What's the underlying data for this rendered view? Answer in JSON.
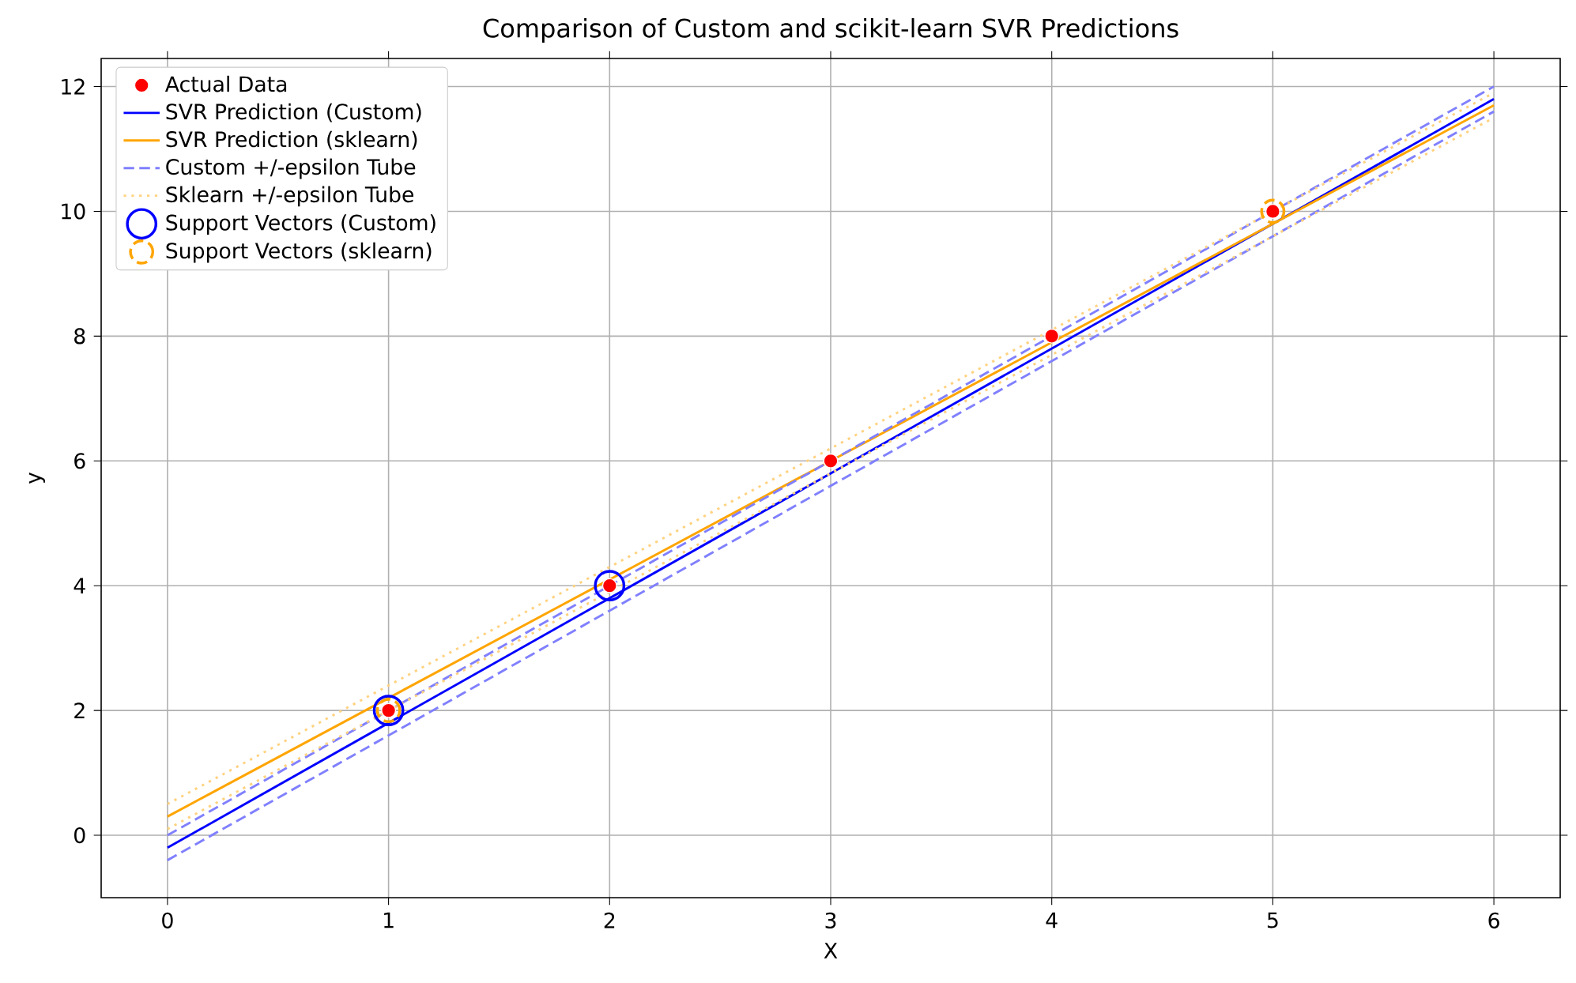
{
  "chart_data": {
    "type": "line",
    "title": "Comparison of Custom and scikit-learn SVR Predictions",
    "xlabel": "X",
    "ylabel": "y",
    "xlim": [
      -0.3,
      6.3
    ],
    "ylim": [
      -1,
      12.45
    ],
    "xticks": [
      0,
      1,
      2,
      3,
      4,
      5,
      6
    ],
    "yticks": [
      0,
      2,
      4,
      6,
      8,
      10,
      12
    ],
    "grid": true,
    "legend": "top left",
    "series": [
      {
        "name": "Actual Data",
        "type": "scatter",
        "marker": "circle",
        "color": "#ff0000",
        "x": [
          1,
          2,
          3,
          4,
          5
        ],
        "values": [
          2,
          4,
          6,
          8,
          10
        ]
      },
      {
        "name": "SVR Prediction (Custom)",
        "type": "line",
        "color": "#0000ff",
        "line_style": "solid",
        "x": [
          0,
          6
        ],
        "values": [
          -0.2,
          11.8
        ]
      },
      {
        "name": "SVR Prediction (sklearn)",
        "type": "line",
        "color": "#ffa500",
        "line_style": "solid",
        "x": [
          0,
          6
        ],
        "values": [
          0.3,
          11.7
        ]
      },
      {
        "name": "Custom +/-epsilon Tube",
        "type": "line",
        "color": "#8080ff",
        "line_style": "dashed",
        "x": [
          0,
          6
        ],
        "values": [
          0.0,
          12.0
        ]
      },
      {
        "name": "Sklearn +/-epsilon Tube",
        "type": "line",
        "color": "#ffd280",
        "line_style": "dotted",
        "x": [
          0,
          6
        ],
        "values": [
          0.5,
          11.9
        ]
      },
      {
        "name": "Support Vectors (Custom)",
        "type": "scatter",
        "marker": "circle",
        "line_style": "solid",
        "color": "#0000ff",
        "x": [
          1,
          2
        ],
        "values": [
          2,
          4
        ]
      },
      {
        "name": "Support Vectors (sklearn)",
        "type": "scatter",
        "marker": "circle",
        "line_style": "dashed",
        "color": "#ffa500",
        "x": [
          1,
          5
        ],
        "values": [
          2,
          10
        ]
      },
      {
        "type": "line",
        "color": "#8080ff",
        "line_style": "dashed",
        "x": [
          0,
          6
        ],
        "values": [
          -0.4,
          11.6
        ]
      },
      {
        "type": "line",
        "color": "#ffd280",
        "line_style": "dotted",
        "x": [
          0,
          6
        ],
        "values": [
          0.1,
          11.5
        ]
      }
    ]
  }
}
